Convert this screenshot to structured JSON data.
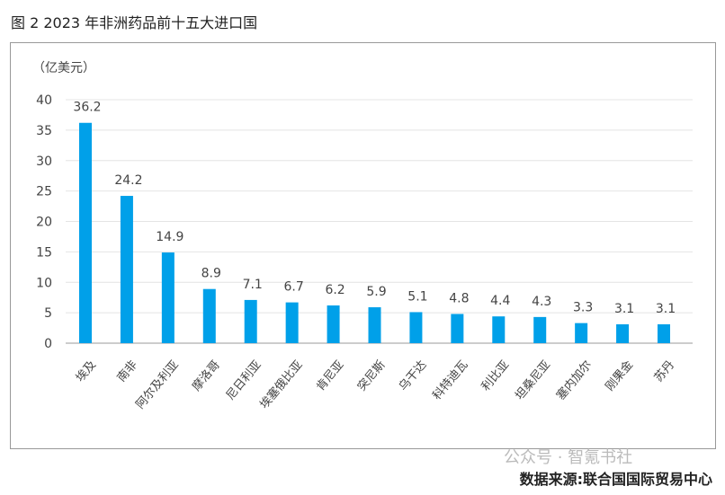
{
  "title": "图 2   2023 年非洲药品前十五大进口国",
  "source": "数据来源:联合国国际贸易中心",
  "watermark": "公众号 · 智氪书社",
  "chart_data": {
    "type": "bar",
    "title": "2023 年非洲药品前十五大进口国",
    "ylabel": "（亿美元）",
    "ylim": [
      0,
      40
    ],
    "yticks": [
      0,
      5,
      10,
      15,
      20,
      25,
      30,
      35,
      40
    ],
    "grid": true,
    "bar_color": "#00a0e9",
    "categories": [
      "埃及",
      "南非",
      "阿尔及利亚",
      "摩洛哥",
      "尼日利亚",
      "埃塞俄比亚",
      "肯尼亚",
      "突尼斯",
      "乌干达",
      "科特迪瓦",
      "利比亚",
      "坦桑尼亚",
      "塞内加尔",
      "刚果金",
      "苏丹"
    ],
    "values": [
      36.2,
      24.2,
      14.9,
      8.9,
      7.1,
      6.7,
      6.2,
      5.9,
      5.1,
      4.8,
      4.4,
      4.3,
      3.3,
      3.1,
      3.1
    ],
    "value_labels": [
      "36.2",
      "24.2",
      "14.9",
      "8.9",
      "7.1",
      "6.7",
      "6.2",
      "5.9",
      "5.1",
      "4.8",
      "4.4",
      "4.3",
      "3.3",
      "3.1",
      "3.1"
    ]
  }
}
